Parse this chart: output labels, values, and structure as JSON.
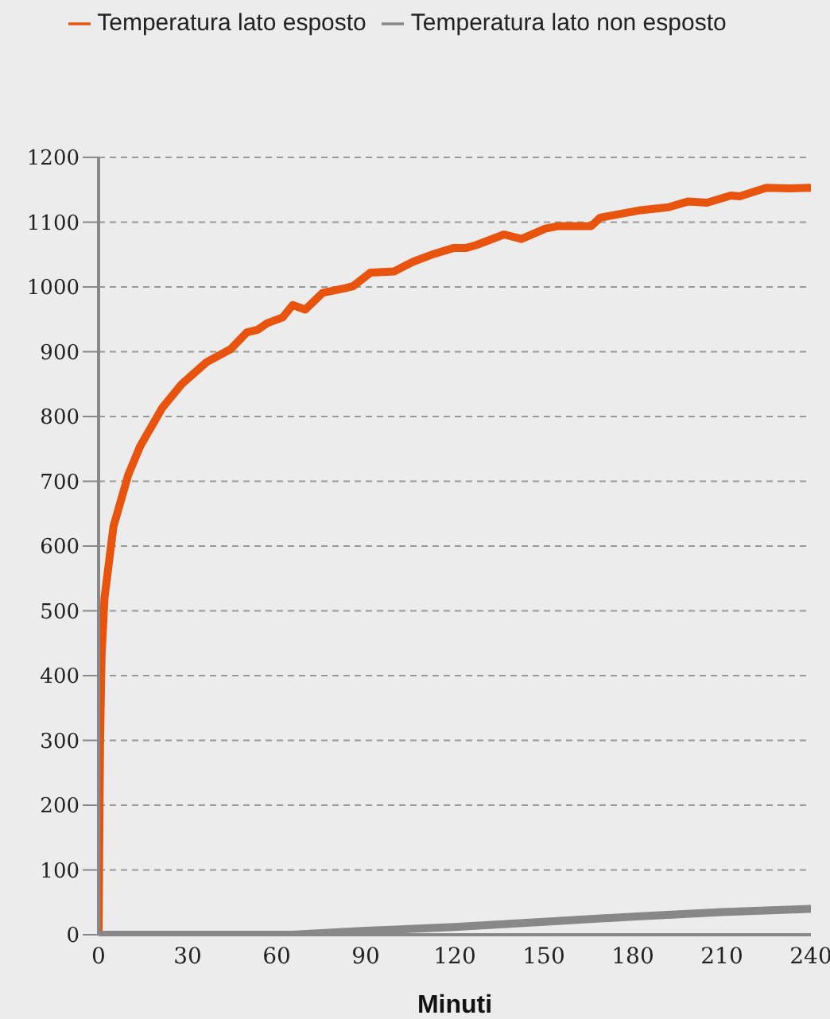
{
  "chart_data": {
    "type": "line",
    "xlabel": "Minuti",
    "x": [
      0,
      65,
      90,
      120,
      150,
      180,
      210,
      240
    ],
    "series": [
      {
        "name": "Temperatura lato esposto",
        "color": "#e8530e",
        "x": [
          0,
          0.5,
          1,
          2,
          5,
          10,
          14,
          21.4,
          28,
          36.4,
          44.5,
          50,
          53.6,
          56.8,
          62,
          65.4,
          69.6,
          75.5,
          83,
          85.7,
          91.6,
          99.6,
          106,
          113,
          119.5,
          123.7,
          127.5,
          136.6,
          142.5,
          150.5,
          155,
          166,
          169,
          182,
          192,
          198.7,
          205,
          213,
          216,
          225,
          233,
          240
        ],
        "values": [
          0,
          300,
          430,
          520,
          630,
          710,
          754,
          813,
          850,
          884,
          904,
          930,
          934,
          944,
          953,
          972,
          965,
          991,
          998,
          1001,
          1022,
          1024,
          1039,
          1051,
          1060,
          1060,
          1065,
          1081,
          1074,
          1090,
          1094,
          1094,
          1107,
          1118,
          1123,
          1132,
          1130,
          1141,
          1140,
          1153,
          1152,
          1153
        ]
      },
      {
        "name": "Temperatura lato non esposto",
        "color": "#888888",
        "values": [
          0,
          0,
          6,
          12,
          20,
          28,
          35,
          40
        ]
      }
    ],
    "xlim": [
      0,
      240
    ],
    "xticks": [
      0,
      30,
      60,
      90,
      120,
      150,
      180,
      210,
      240
    ],
    "ylim": [
      0,
      1200
    ],
    "yticks": [
      0,
      100,
      200,
      300,
      400,
      500,
      600,
      700,
      800,
      900,
      1000,
      1100,
      1200
    ],
    "grid": "y",
    "legend": "top",
    "marker": "none",
    "line_style": "solid"
  }
}
